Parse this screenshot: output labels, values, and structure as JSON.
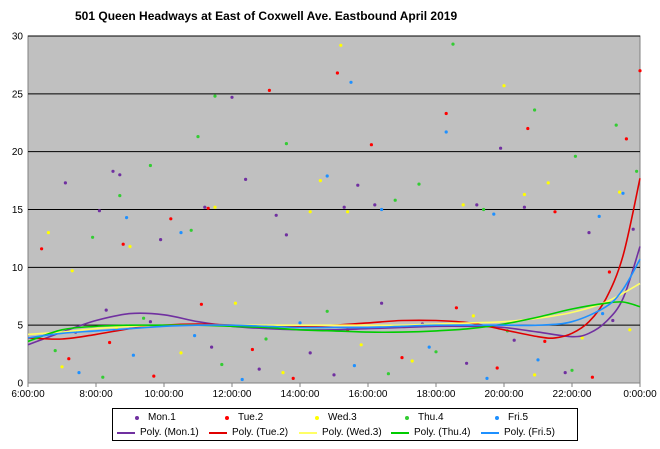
{
  "chart_data": {
    "type": "scatter",
    "title": "501 Queen Headways  at East of Coxwell Ave. Eastbound April 2019",
    "xlabel": "",
    "ylabel": "",
    "x_ticks": [
      "6:00:00",
      "8:00:00",
      "10:00:00",
      "12:00:00",
      "14:00:00",
      "16:00:00",
      "18:00:00",
      "20:00:00",
      "22:00:00",
      "0:00:00"
    ],
    "xlim_hours": [
      6,
      24
    ],
    "ylim": [
      0,
      30
    ],
    "y_ticks": [
      0,
      5,
      10,
      15,
      20,
      25,
      30
    ],
    "grid": "horizontal",
    "legend_position": "bottom",
    "series": [
      {
        "name": "Mon.1",
        "color": "#7030a0",
        "points": [
          [
            7.1,
            17.3
          ],
          [
            8.1,
            14.9
          ],
          [
            8.5,
            18.3
          ],
          [
            8.7,
            18.0
          ],
          [
            9.9,
            12.4
          ],
          [
            11.2,
            15.2
          ],
          [
            12.0,
            24.7
          ],
          [
            12.4,
            17.6
          ],
          [
            13.3,
            14.5
          ],
          [
            13.6,
            12.8
          ],
          [
            15.3,
            15.2
          ],
          [
            15.7,
            17.1
          ],
          [
            16.2,
            15.4
          ],
          [
            19.2,
            15.4
          ],
          [
            19.9,
            20.3
          ],
          [
            20.6,
            15.2
          ],
          [
            22.5,
            13.0
          ],
          [
            23.8,
            13.3
          ],
          [
            7.4,
            4.4
          ],
          [
            8.3,
            6.3
          ],
          [
            9.6,
            5.3
          ],
          [
            11.4,
            3.1
          ],
          [
            12.8,
            1.2
          ],
          [
            14.3,
            2.6
          ],
          [
            15.0,
            0.7
          ],
          [
            16.4,
            6.9
          ],
          [
            17.6,
            5.1
          ],
          [
            18.9,
            1.7
          ],
          [
            20.3,
            3.7
          ],
          [
            21.8,
            0.9
          ],
          [
            23.2,
            5.4
          ]
        ]
      },
      {
        "name": "Tue.2",
        "color": "#ff0000",
        "points": [
          [
            6.4,
            11.6
          ],
          [
            8.8,
            12.0
          ],
          [
            10.2,
            14.2
          ],
          [
            11.3,
            15.1
          ],
          [
            13.1,
            25.3
          ],
          [
            15.1,
            26.8
          ],
          [
            16.1,
            20.6
          ],
          [
            18.3,
            23.3
          ],
          [
            20.7,
            22.0
          ],
          [
            21.5,
            14.8
          ],
          [
            23.1,
            9.6
          ],
          [
            23.6,
            21.1
          ],
          [
            24.0,
            27.0
          ],
          [
            7.2,
            2.1
          ],
          [
            8.4,
            3.5
          ],
          [
            9.7,
            0.6
          ],
          [
            11.1,
            6.8
          ],
          [
            12.6,
            2.9
          ],
          [
            13.8,
            0.4
          ],
          [
            15.4,
            4.6
          ],
          [
            17.0,
            2.2
          ],
          [
            18.6,
            6.5
          ],
          [
            19.8,
            1.3
          ],
          [
            21.2,
            3.6
          ],
          [
            22.6,
            0.5
          ]
        ]
      },
      {
        "name": "Wed.3",
        "color": "#ffff00",
        "points": [
          [
            6.6,
            13.0
          ],
          [
            7.3,
            9.7
          ],
          [
            9.0,
            11.8
          ],
          [
            11.5,
            15.2
          ],
          [
            14.3,
            14.8
          ],
          [
            14.6,
            17.5
          ],
          [
            15.2,
            29.2
          ],
          [
            15.4,
            14.8
          ],
          [
            18.8,
            15.4
          ],
          [
            20.0,
            25.7
          ],
          [
            20.6,
            16.3
          ],
          [
            21.3,
            17.3
          ],
          [
            23.4,
            16.5
          ],
          [
            7.0,
            1.4
          ],
          [
            8.6,
            4.8
          ],
          [
            10.5,
            2.6
          ],
          [
            12.1,
            6.9
          ],
          [
            13.5,
            0.9
          ],
          [
            15.8,
            3.3
          ],
          [
            17.3,
            1.9
          ],
          [
            19.1,
            5.8
          ],
          [
            20.9,
            0.7
          ],
          [
            22.3,
            3.9
          ],
          [
            23.7,
            4.6
          ]
        ]
      },
      {
        "name": "Thu.4",
        "color": "#33cc33",
        "points": [
          [
            7.9,
            12.6
          ],
          [
            8.7,
            16.2
          ],
          [
            9.6,
            18.8
          ],
          [
            10.8,
            13.2
          ],
          [
            11.0,
            21.3
          ],
          [
            11.5,
            24.8
          ],
          [
            13.6,
            20.7
          ],
          [
            16.8,
            15.8
          ],
          [
            17.5,
            17.2
          ],
          [
            18.5,
            29.3
          ],
          [
            19.4,
            15.0
          ],
          [
            20.9,
            23.6
          ],
          [
            22.1,
            19.6
          ],
          [
            23.3,
            22.3
          ],
          [
            23.9,
            18.3
          ],
          [
            6.8,
            2.8
          ],
          [
            8.2,
            0.5
          ],
          [
            9.4,
            5.6
          ],
          [
            11.7,
            1.6
          ],
          [
            13.0,
            3.8
          ],
          [
            14.8,
            6.2
          ],
          [
            16.6,
            0.8
          ],
          [
            18.0,
            2.7
          ],
          [
            20.1,
            4.5
          ],
          [
            22.0,
            1.1
          ]
        ]
      },
      {
        "name": "Fri.5",
        "color": "#1e90ff",
        "points": [
          [
            8.9,
            14.3
          ],
          [
            10.5,
            13.0
          ],
          [
            14.8,
            17.9
          ],
          [
            15.5,
            26.0
          ],
          [
            16.4,
            15.0
          ],
          [
            18.3,
            21.7
          ],
          [
            19.7,
            14.6
          ],
          [
            22.8,
            14.4
          ],
          [
            23.5,
            16.4
          ],
          [
            7.5,
            0.9
          ],
          [
            9.1,
            2.4
          ],
          [
            10.9,
            4.1
          ],
          [
            12.3,
            0.3
          ],
          [
            14.0,
            5.2
          ],
          [
            15.6,
            1.5
          ],
          [
            17.8,
            3.1
          ],
          [
            19.5,
            0.4
          ],
          [
            21.0,
            2.0
          ],
          [
            22.9,
            6.0
          ]
        ]
      }
    ],
    "trendlines": [
      {
        "name": "Poly. (Mon.1)",
        "color": "#7030a0",
        "points": [
          [
            6,
            3.3
          ],
          [
            7,
            4.4
          ],
          [
            8,
            5.4
          ],
          [
            9,
            6.0
          ],
          [
            10,
            5.9
          ],
          [
            11,
            5.3
          ],
          [
            12,
            4.9
          ],
          [
            13,
            4.7
          ],
          [
            14,
            4.6
          ],
          [
            15,
            4.6
          ],
          [
            16,
            4.7
          ],
          [
            17,
            4.8
          ],
          [
            18,
            4.9
          ],
          [
            19,
            4.9
          ],
          [
            20,
            4.8
          ],
          [
            21,
            4.4
          ],
          [
            22,
            4.0
          ],
          [
            22.5,
            4.3
          ],
          [
            23,
            5.3
          ],
          [
            23.5,
            7.3
          ],
          [
            24,
            11.8
          ]
        ]
      },
      {
        "name": "Poly. (Tue.2)",
        "color": "#e00000",
        "points": [
          [
            6,
            3.9
          ],
          [
            7,
            3.8
          ],
          [
            8,
            4.2
          ],
          [
            9,
            4.7
          ],
          [
            10,
            5.0
          ],
          [
            11,
            5.1
          ],
          [
            12,
            5.0
          ],
          [
            13,
            4.9
          ],
          [
            14,
            4.9
          ],
          [
            15,
            5.0
          ],
          [
            16,
            5.2
          ],
          [
            17,
            5.4
          ],
          [
            18,
            5.4
          ],
          [
            19,
            5.2
          ],
          [
            20,
            4.6
          ],
          [
            21,
            4.0
          ],
          [
            21.5,
            3.9
          ],
          [
            22,
            4.3
          ],
          [
            22.5,
            5.3
          ],
          [
            23,
            7.3
          ],
          [
            23.5,
            11.0
          ],
          [
            24,
            17.7
          ]
        ]
      },
      {
        "name": "Poly. (Wed.3)",
        "color": "#ffff66",
        "points": [
          [
            6,
            4.2
          ],
          [
            7,
            4.4
          ],
          [
            8,
            4.7
          ],
          [
            9,
            4.9
          ],
          [
            10,
            5.0
          ],
          [
            11,
            5.0
          ],
          [
            12,
            5.0
          ],
          [
            13,
            5.0
          ],
          [
            14,
            5.0
          ],
          [
            15,
            5.0
          ],
          [
            16,
            5.0
          ],
          [
            17,
            5.0
          ],
          [
            18,
            5.1
          ],
          [
            19,
            5.2
          ],
          [
            20,
            5.3
          ],
          [
            21,
            5.6
          ],
          [
            22,
            6.1
          ],
          [
            23,
            7.0
          ],
          [
            24,
            8.6
          ]
        ]
      },
      {
        "name": "Poly. (Thu.4)",
        "color": "#00cc00",
        "points": [
          [
            6,
            3.6
          ],
          [
            7,
            4.6
          ],
          [
            8,
            4.9
          ],
          [
            9,
            5.0
          ],
          [
            10,
            5.0
          ],
          [
            11,
            5.0
          ],
          [
            12,
            4.9
          ],
          [
            13,
            4.8
          ],
          [
            14,
            4.6
          ],
          [
            15,
            4.5
          ],
          [
            16,
            4.4
          ],
          [
            17,
            4.4
          ],
          [
            18,
            4.5
          ],
          [
            19,
            4.7
          ],
          [
            20,
            5.1
          ],
          [
            21,
            5.7
          ],
          [
            22,
            6.4
          ],
          [
            23,
            6.9
          ],
          [
            23.5,
            7.0
          ],
          [
            24,
            6.6
          ]
        ]
      },
      {
        "name": "Poly. (Fri.5)",
        "color": "#1e90ff",
        "points": [
          [
            6,
            3.9
          ],
          [
            7,
            4.3
          ],
          [
            8,
            4.5
          ],
          [
            9,
            4.7
          ],
          [
            10,
            4.9
          ],
          [
            11,
            5.0
          ],
          [
            12,
            5.0
          ],
          [
            13,
            4.9
          ],
          [
            14,
            4.8
          ],
          [
            15,
            4.8
          ],
          [
            16,
            4.8
          ],
          [
            17,
            4.9
          ],
          [
            18,
            5.0
          ],
          [
            19,
            5.0
          ],
          [
            20,
            5.0
          ],
          [
            21,
            5.0
          ],
          [
            22,
            5.3
          ],
          [
            23,
            6.6
          ],
          [
            23.5,
            8.1
          ],
          [
            24,
            10.7
          ]
        ]
      }
    ]
  },
  "legend": {
    "row1": [
      "Mon.1",
      "Tue.2",
      "Wed.3",
      "Thu.4",
      "Fri.5"
    ],
    "row2": [
      "Poly. (Mon.1)",
      "Poly. (Tue.2)",
      "Poly. (Wed.3)",
      "Poly. (Thu.4)",
      "Poly. (Fri.5)"
    ]
  }
}
